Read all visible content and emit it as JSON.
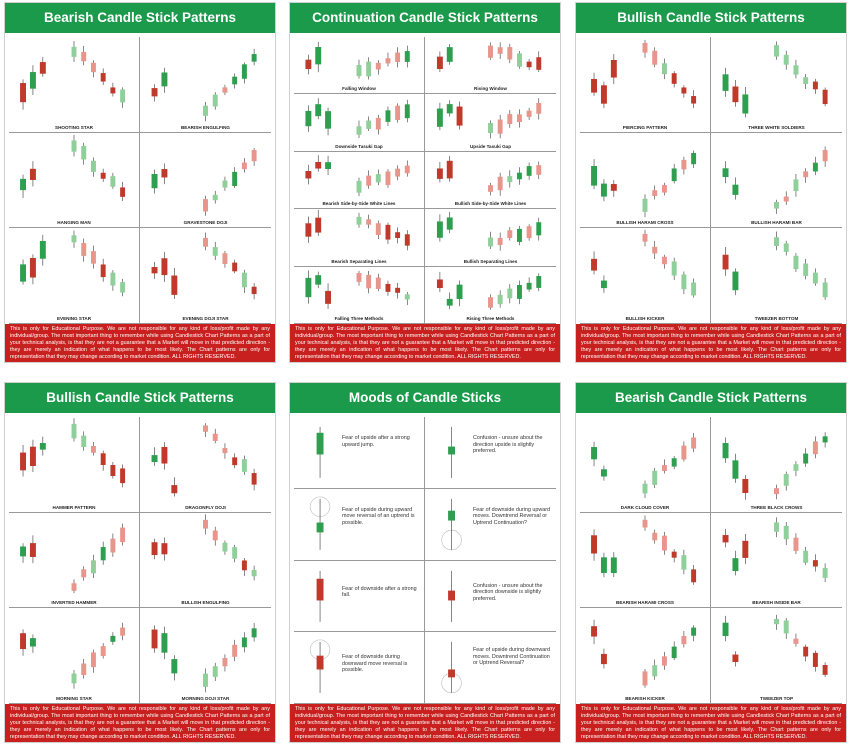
{
  "posters": [
    {
      "title": "Bearish Candle Stick Patterns",
      "cells": [
        "SHOOTING STAR",
        "BEARISH ENGULFING",
        "HANGING MAN",
        "GRAVESTONE DOJI",
        "EVENING STAR",
        "EVENING DOJI STAR"
      ]
    },
    {
      "title": "Continuation Candle Stick Patterns",
      "cells": [
        "Falling Window",
        "Rising Window",
        "Downside Tasuki Gap",
        "Upside Tasuki Gap",
        "Bearish Side-by-Side White Lines",
        "Bullish Side-by-Side White Lines",
        "Bearish Separating Lines",
        "Bullish Separating Lines",
        "Falling Three Methods",
        "Rising Three Methods"
      ]
    },
    {
      "title": "Bullish Candle Stick Patterns",
      "cells": [
        "PIERCING PATTERN",
        "THREE WHITE SOLDIERS",
        "BULLISH HARAMI CROSS",
        "BULLISH HARAMI BAR",
        "BULLISH KICKER",
        "TWEEZER BOTTOM"
      ]
    },
    {
      "title": "Bullish Candle Stick Patterns",
      "cells": [
        "HAMMER PATTERN",
        "DRAGONFLY DOJI",
        "INVERTED HAMMER",
        "BULLISH ENGULFING",
        "MORNING STAR",
        "MORNING DOJI STAR"
      ]
    },
    {
      "title": "Moods of Candle Sticks",
      "moods": [
        "Fear of upside after a strong upward jump.",
        "Confusion - unsure about the direction upside is slightly preferred.",
        "Fear of upside during upward move reversal of an uptrend is possible.",
        "Fear of downside during upward moves. Downtrend Reversal or Uptrend Continuation?",
        "Fear of downside after a strong fall.",
        "Confusion - unsure about the direction downside is slightly preferred.",
        "Fear of downside during downward move reversal is possible.",
        "Fear of upside during downward moves. Downtrend Continuation or Uptrend Reversal?"
      ]
    },
    {
      "title": "Bearish Candle Stick Patterns",
      "cells": [
        "DARK CLOUD COVER",
        "THREE BLACK CROWS",
        "BEARISH HARAMI CROSS",
        "BEARISH INSIDE BAR",
        "BEARISH KICKER",
        "TWEEZER TOP"
      ]
    }
  ],
  "disclaimer": "This is only for Educational Purpose. We are not responsible for any kind of loss/profit made by any individual/group. The most important thing to remember while using Candlestick Chart Patterns as a part of your technical analysis, is that they are not a guarantee that a Market will move in that predicted direction - they are merely an indication of what happens to be most likely. The Chart patterns are only for representation that they may change according to market condition. ALL RIGHTS RESERVED.",
  "colors": {
    "title_bar": "#1a9a4a",
    "disclaimer_bar": "#c8201e",
    "bull": "#2e9e4f",
    "bear": "#c0392b",
    "bull_light": "#8fcf9a",
    "bear_light": "#e8958b"
  }
}
